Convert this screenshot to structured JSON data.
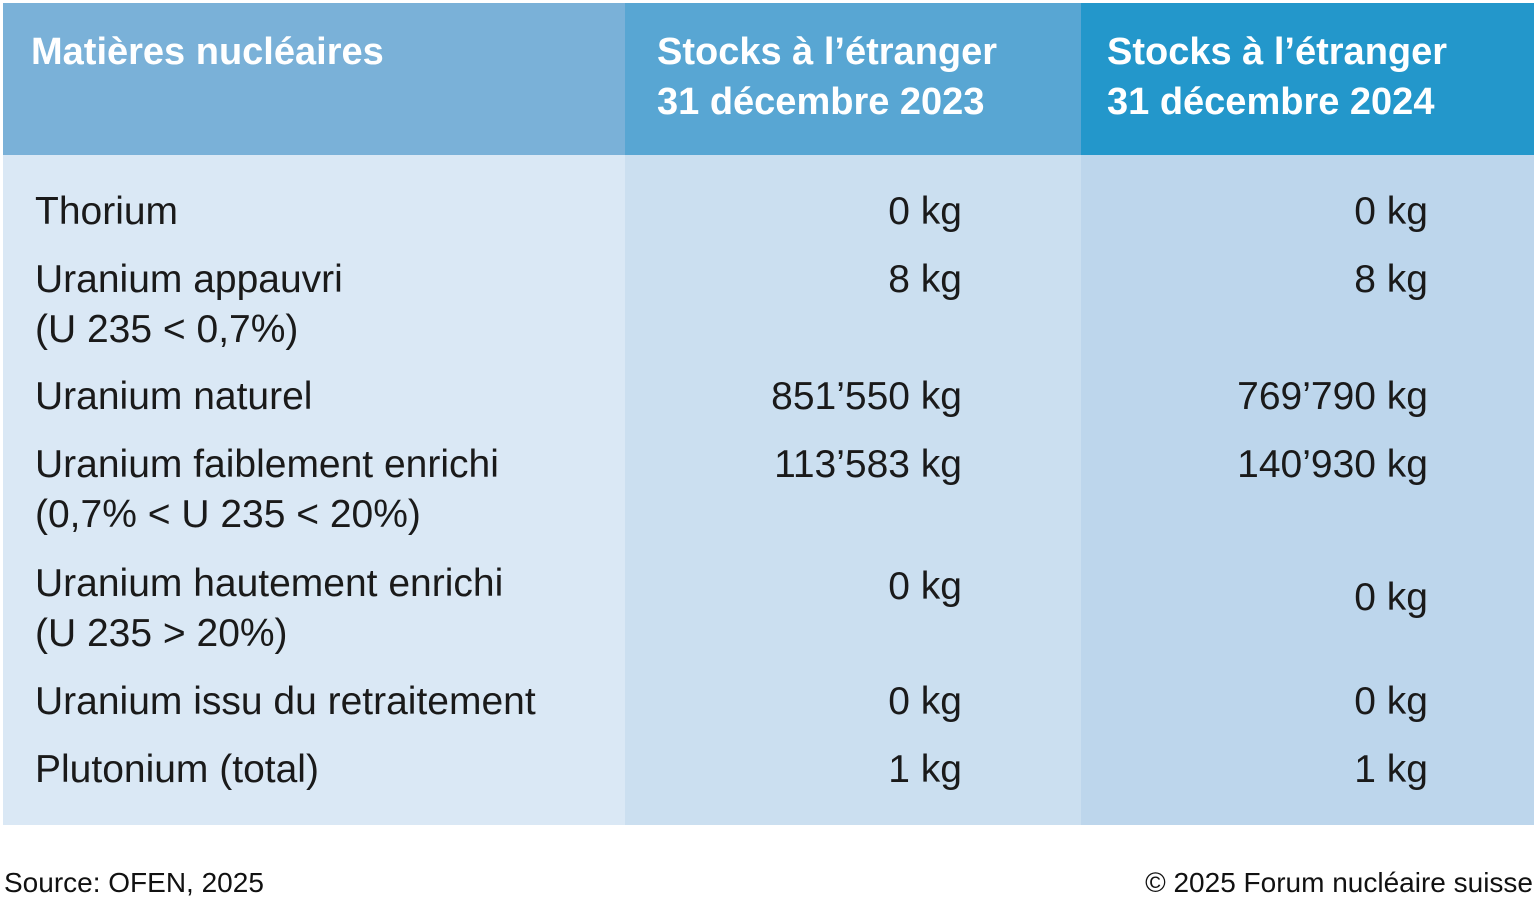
{
  "table": {
    "header": [
      [
        "Matières nucléaires"
      ],
      [
        "Stocks à l’étranger",
        "31 décembre 2023"
      ],
      [
        "Stocks à l’étranger",
        "31 décembre 2024"
      ]
    ],
    "rows": [
      [
        [
          "Thorium"
        ],
        "0 kg",
        "0 kg"
      ],
      [
        [
          "Uranium appauvri",
          "(U 235 < 0,7%)"
        ],
        "8 kg",
        "8 kg"
      ],
      [
        [
          "Uranium naturel"
        ],
        "851’550 kg",
        "769’790 kg"
      ],
      [
        [
          "Uranium faiblement enrichi",
          "(0,7% < U 235 < 20%)"
        ],
        "113’583 kg",
        "140’930 kg"
      ],
      [
        [
          "Uranium hautement enrichi",
          "(U 235 > 20%)"
        ],
        "0 kg",
        "0 kg"
      ],
      [
        [
          "Uranium issu du retraitement"
        ],
        "0 kg",
        "0 kg"
      ],
      [
        [
          "Plutonium (total)"
        ],
        "1 kg",
        "1 kg"
      ]
    ]
  },
  "footer": {
    "source": "Source: OFEN, 2025",
    "copyright": "© 2025 Forum nucléaire suisse"
  }
}
